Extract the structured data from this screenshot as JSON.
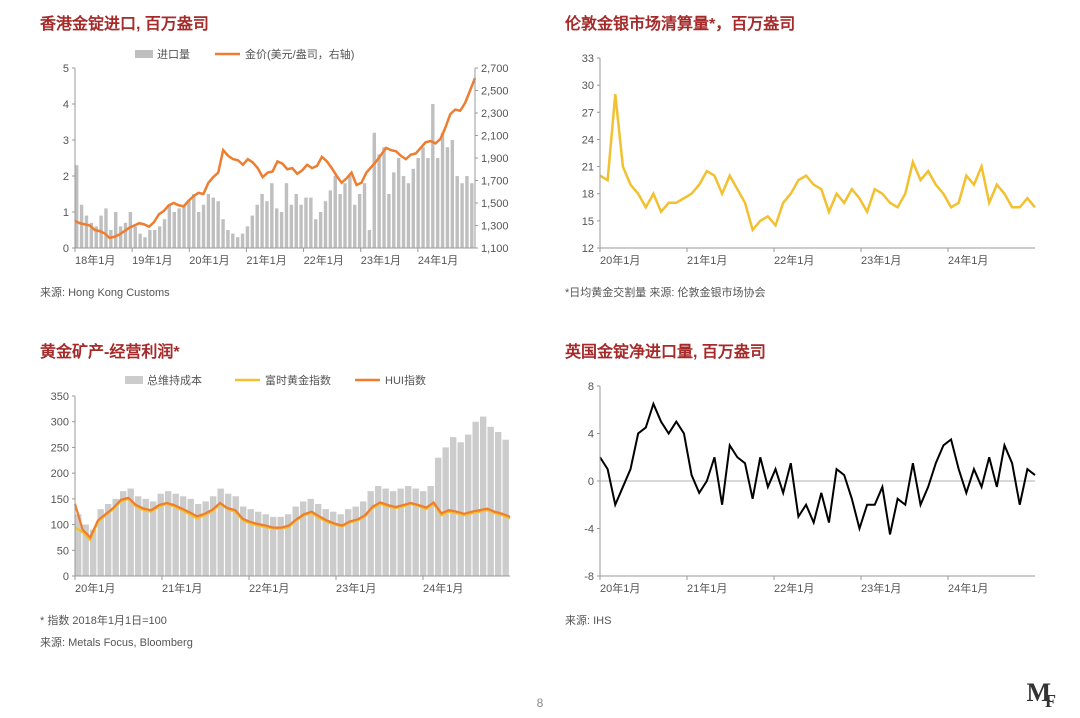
{
  "page_number": "8",
  "colors": {
    "title": "#a52a2a",
    "axis_text": "#555555",
    "grid": "#dddddd",
    "bar_gray": "#bfbfbf",
    "area_gray": "#cccccc",
    "orange": "#ed7d31",
    "yellow": "#f2c030",
    "black": "#000000",
    "zero_line": "#999999"
  },
  "chart1": {
    "title": "香港金锭进口, 百万盎司",
    "source": "来源: Hong Kong Customs",
    "legend_bar": "进口量",
    "legend_line": "金价(美元/盎司，右轴)",
    "y_left": {
      "min": 0,
      "max": 5,
      "step": 1
    },
    "y_right": {
      "min": 1100,
      "max": 2700,
      "step": 200
    },
    "x_labels": [
      "18年1月",
      "19年1月",
      "20年1月",
      "21年1月",
      "22年1月",
      "23年1月",
      "24年1月"
    ],
    "bars": [
      2.3,
      1.2,
      0.9,
      0.7,
      0.6,
      0.9,
      1.1,
      0.5,
      1.0,
      0.6,
      0.7,
      1.0,
      0.6,
      0.4,
      0.3,
      0.5,
      0.5,
      0.6,
      0.8,
      1.2,
      1.0,
      1.1,
      1.2,
      1.3,
      1.5,
      1.0,
      1.2,
      1.5,
      1.4,
      1.3,
      0.8,
      0.5,
      0.4,
      0.3,
      0.4,
      0.6,
      0.9,
      1.2,
      1.5,
      1.3,
      1.8,
      1.1,
      1.0,
      1.8,
      1.2,
      1.5,
      1.2,
      1.4,
      1.4,
      0.8,
      1.0,
      1.3,
      1.6,
      2.0,
      1.5,
      1.8,
      2.0,
      1.2,
      1.5,
      1.8,
      0.5,
      3.2,
      2.6,
      2.8,
      1.5,
      2.1,
      2.5,
      2.0,
      1.8,
      2.2,
      2.5,
      2.8,
      2.5,
      4.0,
      2.5,
      3.2,
      2.8,
      3.0,
      2.0,
      1.8,
      2.0,
      1.8
    ],
    "line_price": [
      1340,
      1320,
      1310,
      1300,
      1260,
      1250,
      1230,
      1190,
      1200,
      1220,
      1250,
      1280,
      1300,
      1320,
      1310,
      1290,
      1330,
      1400,
      1430,
      1480,
      1500,
      1480,
      1470,
      1520,
      1560,
      1590,
      1580,
      1680,
      1730,
      1770,
      1970,
      1920,
      1890,
      1880,
      1840,
      1890,
      1860,
      1810,
      1730,
      1770,
      1780,
      1870,
      1850,
      1800,
      1810,
      1760,
      1790,
      1840,
      1810,
      1830,
      1910,
      1870,
      1810,
      1740,
      1680,
      1720,
      1770,
      1660,
      1680,
      1770,
      1820,
      1870,
      1930,
      1990,
      1970,
      1960,
      1920,
      1890,
      1930,
      1940,
      1990,
      2040,
      2050,
      2030,
      2070,
      2170,
      2290,
      2330,
      2320,
      2390,
      2500,
      2610
    ],
    "title_fontsize": 16,
    "label_fontsize": 11
  },
  "chart2": {
    "title": "伦敦金银市场清算量*，百万盎司",
    "footnote": "*日均黄金交割量 来源: 伦敦金银市场协会",
    "y": {
      "min": 12,
      "max": 33,
      "step": 3
    },
    "x_labels": [
      "20年1月",
      "21年1月",
      "22年1月",
      "23年1月",
      "24年1月"
    ],
    "line": [
      20,
      19.5,
      29,
      21,
      19,
      18,
      16.5,
      18,
      16,
      17,
      17,
      17.5,
      18,
      19,
      20.5,
      20,
      18,
      20,
      18.5,
      17,
      14,
      15,
      15.5,
      14.5,
      17,
      18,
      19.5,
      20,
      19,
      18.5,
      16,
      18,
      17,
      18.5,
      17.5,
      16,
      18.5,
      18,
      17,
      16.5,
      18,
      21.5,
      19.5,
      20.5,
      19,
      18,
      16.5,
      17,
      20,
      19,
      21,
      17,
      19,
      18,
      16.5,
      16.5,
      17.5,
      16.5
    ],
    "line_color": "#f2c030",
    "line_width": 2.5,
    "title_fontsize": 16,
    "label_fontsize": 11
  },
  "chart3": {
    "title": "黄金矿产-经营利润*",
    "footnote_index": "* 指数 2018年1月1日=100",
    "source": "来源: Metals Focus, Bloomberg",
    "legend_area": "总维持成本",
    "legend_line1": "富时黄金指数",
    "legend_line2": "HUI指数",
    "y": {
      "min": 0,
      "max": 350,
      "step": 50
    },
    "x_labels": [
      "20年1月",
      "21年1月",
      "22年1月",
      "23年1月",
      "24年1月"
    ],
    "area": [
      120,
      100,
      90,
      130,
      140,
      150,
      165,
      170,
      155,
      150,
      145,
      160,
      165,
      160,
      155,
      150,
      140,
      145,
      155,
      170,
      160,
      155,
      135,
      130,
      125,
      120,
      115,
      115,
      120,
      135,
      145,
      150,
      140,
      130,
      125,
      120,
      130,
      135,
      145,
      165,
      175,
      170,
      165,
      170,
      175,
      170,
      165,
      175,
      230,
      250,
      270,
      260,
      275,
      300,
      310,
      290,
      280,
      265
    ],
    "yellow": [
      95,
      85,
      70,
      105,
      118,
      130,
      145,
      150,
      135,
      128,
      125,
      135,
      140,
      135,
      128,
      120,
      112,
      118,
      126,
      140,
      130,
      125,
      108,
      102,
      98,
      95,
      92,
      92,
      95,
      108,
      118,
      122,
      113,
      105,
      100,
      96,
      104,
      108,
      116,
      132,
      140,
      135,
      132,
      135,
      140,
      136,
      130,
      140,
      118,
      125,
      122,
      118,
      122,
      125,
      128,
      122,
      118,
      112
    ],
    "orange": [
      140,
      90,
      75,
      108,
      120,
      132,
      148,
      152,
      138,
      131,
      128,
      138,
      142,
      138,
      131,
      124,
      116,
      121,
      129,
      142,
      132,
      128,
      111,
      105,
      101,
      98,
      94,
      94,
      98,
      110,
      120,
      125,
      116,
      108,
      102,
      98,
      106,
      110,
      118,
      135,
      143,
      138,
      134,
      138,
      142,
      138,
      133,
      143,
      122,
      128,
      125,
      121,
      125,
      128,
      131,
      125,
      121,
      115
    ],
    "area_color": "#cccccc",
    "yellow_color": "#f2c030",
    "orange_color": "#ed7d31",
    "title_fontsize": 16,
    "label_fontsize": 11
  },
  "chart4": {
    "title": "英国金锭净进口量, 百万盎司",
    "source": "来源: IHS",
    "y": {
      "min": -8,
      "max": 8,
      "step": 4
    },
    "x_labels": [
      "20年1月",
      "21年1月",
      "22年1月",
      "23年1月",
      "24年1月"
    ],
    "line": [
      2,
      1,
      -2,
      -0.5,
      1,
      4,
      4.5,
      6.5,
      5,
      4,
      5,
      4,
      0.5,
      -1,
      0,
      2,
      -2,
      3,
      2,
      1.5,
      -1.5,
      2,
      -0.5,
      1,
      -1,
      1.5,
      -3,
      -2,
      -3.5,
      -1,
      -3.5,
      1,
      0.5,
      -1.5,
      -4,
      -2,
      -2,
      -0.5,
      -4.5,
      -1.5,
      -2,
      1.5,
      -2,
      -0.5,
      1.5,
      3,
      3.5,
      1,
      -1,
      1,
      -0.5,
      2,
      -0.5,
      3,
      1.5,
      -2,
      1,
      0.5
    ],
    "line_color": "#000000",
    "line_width": 2,
    "title_fontsize": 16,
    "label_fontsize": 11
  }
}
